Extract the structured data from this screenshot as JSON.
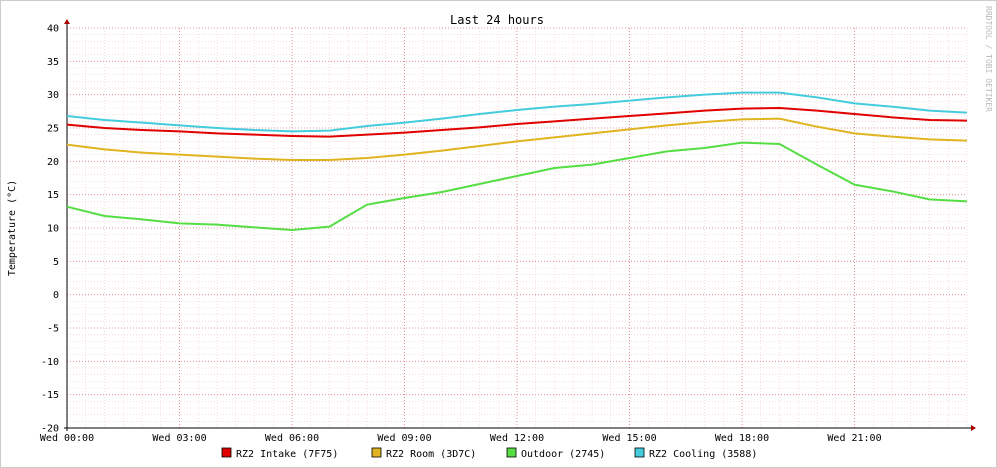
{
  "chart_data": {
    "type": "line",
    "title": "Last 24 hours",
    "y_label": "Temperature (°C)",
    "watermark": "RRDTOOL / TOBI OETIKER",
    "x": [
      0,
      1,
      2,
      3,
      4,
      5,
      6,
      7,
      8,
      9,
      10,
      11,
      12,
      13,
      14,
      15,
      16,
      17,
      18,
      19,
      20,
      21,
      22,
      23,
      24
    ],
    "xlim": [
      0,
      24
    ],
    "xticks": [
      {
        "value": 0,
        "label": "Wed 00:00"
      },
      {
        "value": 3,
        "label": "Wed 03:00"
      },
      {
        "value": 6,
        "label": "Wed 06:00"
      },
      {
        "value": 9,
        "label": "Wed 09:00"
      },
      {
        "value": 12,
        "label": "Wed 12:00"
      },
      {
        "value": 15,
        "label": "Wed 15:00"
      },
      {
        "value": 18,
        "label": "Wed 18:00"
      },
      {
        "value": 21,
        "label": "Wed 21:00"
      }
    ],
    "ylim": [
      -20,
      40
    ],
    "yticks": [
      -20,
      -15,
      -10,
      -5,
      0,
      5,
      10,
      15,
      20,
      25,
      30,
      35,
      40
    ],
    "grid": true,
    "legend": "bottom",
    "series": [
      {
        "name": "RZ2 Intake (7F75)",
        "color": "#e00000",
        "values": [
          25.5,
          25,
          24.7,
          24.5,
          24.2,
          24,
          23.8,
          23.7,
          24,
          24.3,
          24.7,
          25.1,
          25.6,
          26,
          26.4,
          26.8,
          27.2,
          27.6,
          27.9,
          28,
          27.6,
          27.1,
          26.6,
          26.2,
          26.1
        ]
      },
      {
        "name": "RZ2 Room (3D7C)",
        "color": "#e0b420",
        "values": [
          22.5,
          21.8,
          21.3,
          21,
          20.7,
          20.4,
          20.2,
          20.2,
          20.5,
          21,
          21.6,
          22.3,
          23,
          23.6,
          24.2,
          24.8,
          25.4,
          25.9,
          26.3,
          26.4,
          25.2,
          24.2,
          23.7,
          23.3,
          23.1
        ]
      },
      {
        "name": "Outdoor (2745)",
        "color": "#55dd44",
        "values": [
          13.2,
          11.8,
          11.3,
          10.7,
          10.5,
          10.1,
          9.7,
          10.2,
          13.5,
          14.5,
          15.4,
          16.6,
          17.8,
          19,
          19.5,
          20.5,
          21.5,
          22,
          22.8,
          22.6,
          19.5,
          16.5,
          15.5,
          14.3,
          14
        ]
      },
      {
        "name": "RZ2 Cooling (3588)",
        "color": "#44ccdd",
        "values": [
          26.8,
          26.2,
          25.8,
          25.4,
          25,
          24.7,
          24.5,
          24.6,
          25.3,
          25.8,
          26.4,
          27.1,
          27.7,
          28.2,
          28.6,
          29.1,
          29.6,
          30,
          30.3,
          30.3,
          29.6,
          28.7,
          28.2,
          27.6,
          27.3
        ]
      }
    ]
  }
}
